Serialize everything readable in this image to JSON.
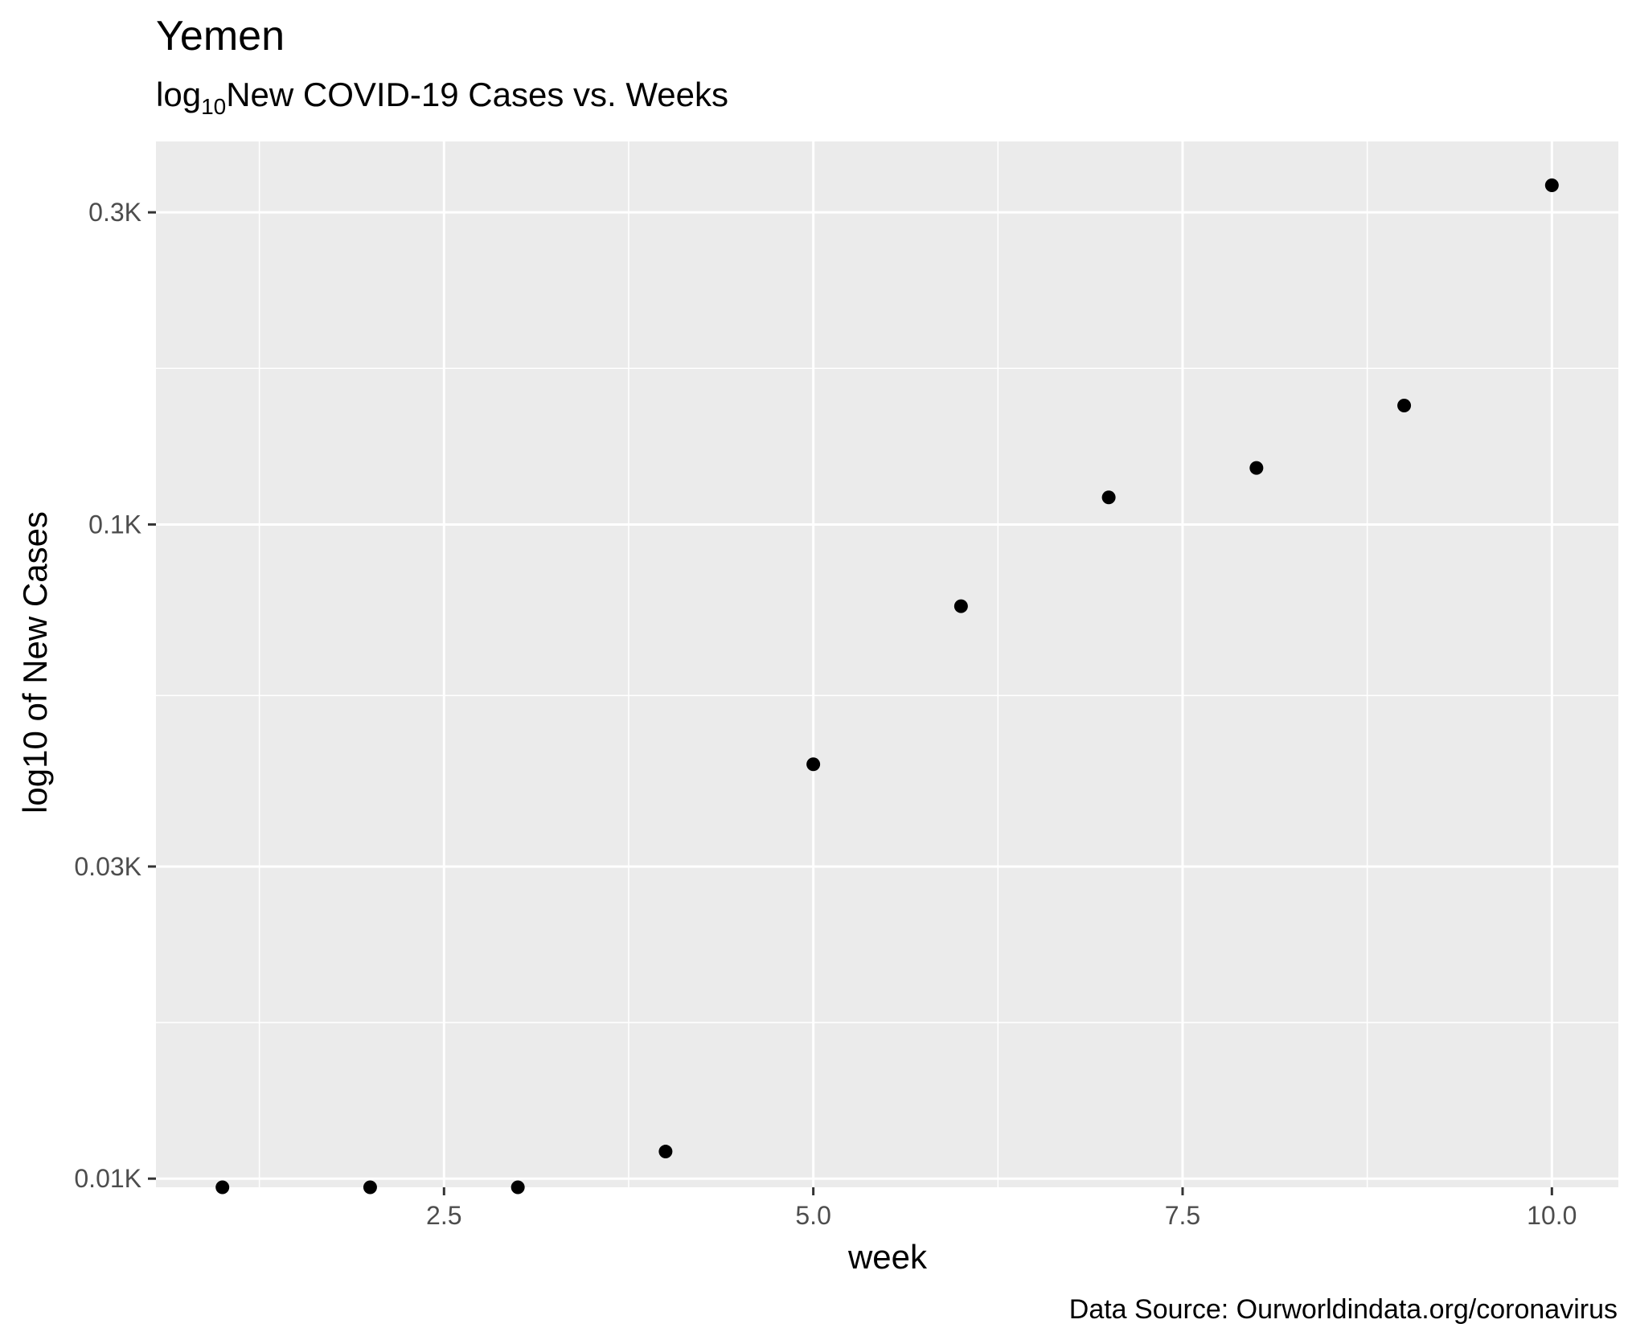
{
  "chart_data": {
    "type": "scatter",
    "title": "Yemen",
    "subtitle": {
      "prefix": "log",
      "subscript": "10",
      "text": "New COVID-19 Cases vs. Weeks"
    },
    "xlabel": "week",
    "ylabel": "log10 of New Cases",
    "caption": "Data Source: Ourworldindata.org/coronavirus",
    "y_scale": "log10",
    "xlim": [
      0.55,
      10.45
    ],
    "ylim": [
      9.7,
      385
    ],
    "x_ticks": [
      {
        "value": 2.5,
        "label": "2.5"
      },
      {
        "value": 5.0,
        "label": "5.0"
      },
      {
        "value": 7.5,
        "label": "7.5"
      },
      {
        "value": 10.0,
        "label": "10.0"
      }
    ],
    "y_ticks": [
      {
        "value": 10,
        "label": "0.01K"
      },
      {
        "value": 30,
        "label": "0.03K"
      },
      {
        "value": 100,
        "label": "0.1K"
      },
      {
        "value": 300,
        "label": "0.3K"
      }
    ],
    "grid": true,
    "colors": {
      "panel": "#ebebeb",
      "grid": "#ffffff",
      "point": "#000000"
    },
    "series": [
      {
        "x": [
          1,
          2,
          3,
          4,
          5,
          6,
          7,
          8,
          9,
          10
        ],
        "y": [
          9.7,
          9.7,
          9.7,
          11,
          43,
          75,
          110,
          122,
          152,
          330
        ]
      }
    ]
  }
}
